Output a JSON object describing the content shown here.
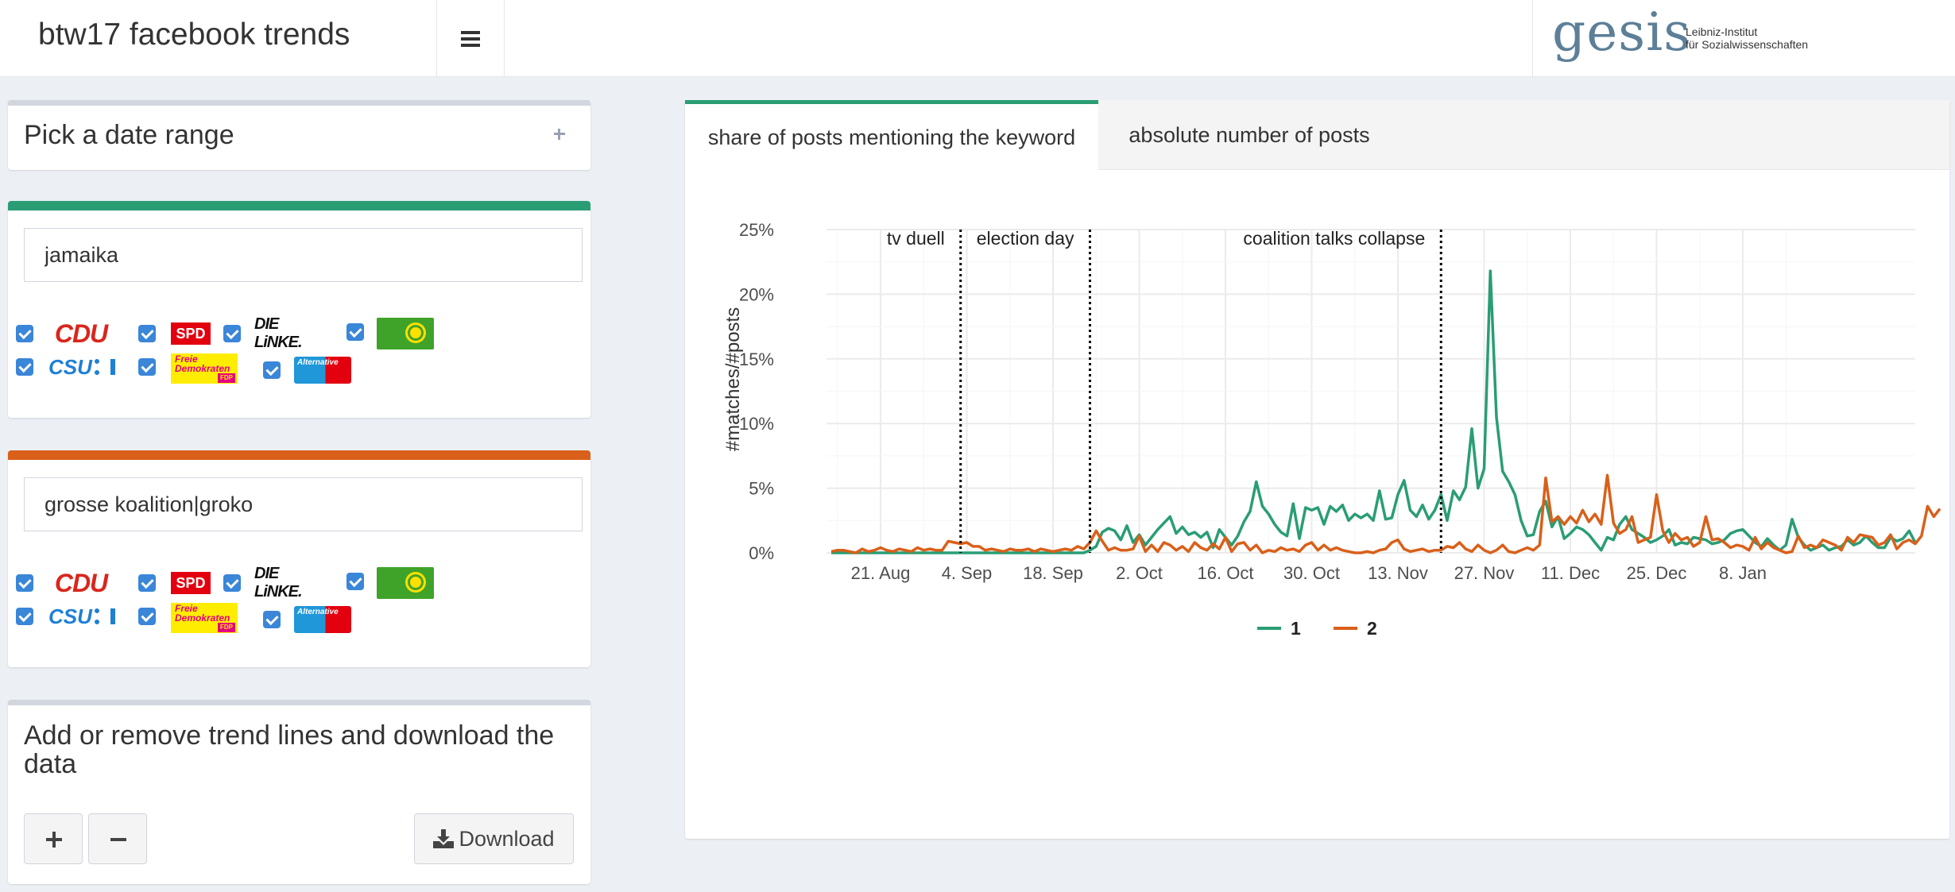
{
  "header": {
    "app_title": "btw17 facebook trends",
    "logo_word": "gesis",
    "logo_sub_line1": "Leibniz-Institut",
    "logo_sub_line2": "für Sozialwissenschaften",
    "menu_icon": "hamburger-icon"
  },
  "date_box": {
    "title": "Pick a date range",
    "icon": "plus-icon"
  },
  "keywords": [
    {
      "color": "#2a9d74",
      "value": "jamaika",
      "parties": [
        {
          "name": "CDU",
          "checked": true
        },
        {
          "name": "SPD",
          "checked": true
        },
        {
          "name": "DIE LINKE.",
          "checked": true
        },
        {
          "name": "GRÜNE",
          "checked": true
        },
        {
          "name": "CSU",
          "checked": true
        },
        {
          "name": "FDP",
          "checked": true
        },
        {
          "name": "AfD",
          "checked": true
        }
      ]
    },
    {
      "color": "#d9601a",
      "value": "grosse koalition|groko",
      "parties": [
        {
          "name": "CDU",
          "checked": true
        },
        {
          "name": "SPD",
          "checked": true
        },
        {
          "name": "DIE LINKE.",
          "checked": true
        },
        {
          "name": "GRÜNE",
          "checked": true
        },
        {
          "name": "CSU",
          "checked": true
        },
        {
          "name": "FDP",
          "checked": true
        },
        {
          "name": "AfD",
          "checked": true
        }
      ]
    }
  ],
  "party_logo_text": {
    "cdu": "CDU",
    "spd": "SPD",
    "linke": "DIE LiNKE.",
    "csu": "CSU",
    "fdp_line1": "Freie",
    "fdp_line2": "Demokraten",
    "fdp_tag": "FDP",
    "afd": "Alternative"
  },
  "trend_box": {
    "title": "Add or remove trend lines and download the data",
    "download_label": "Download",
    "add_icon": "plus-icon",
    "remove_icon": "minus-icon",
    "download_icon": "download-icon"
  },
  "tabs": [
    {
      "label": "share of posts mentioning the keyword",
      "active": true
    },
    {
      "label": "absolute number of posts",
      "active": false
    }
  ],
  "chart_data": {
    "type": "line",
    "ylabel": "#matches/#posts",
    "yticks": [
      "0%",
      "5%",
      "10%",
      "15%",
      "20%",
      "25%"
    ],
    "ylim": [
      0,
      25
    ],
    "x_start": "2017-08-13",
    "xticks": [
      {
        "date": "2017-08-21",
        "label": "21. Aug"
      },
      {
        "date": "2017-09-04",
        "label": "4. Sep"
      },
      {
        "date": "2017-09-18",
        "label": "18. Sep"
      },
      {
        "date": "2017-10-02",
        "label": "2. Oct"
      },
      {
        "date": "2017-10-16",
        "label": "16. Oct"
      },
      {
        "date": "2017-10-30",
        "label": "30. Oct"
      },
      {
        "date": "2017-11-13",
        "label": "13. Nov"
      },
      {
        "date": "2017-11-27",
        "label": "27. Nov"
      },
      {
        "date": "2017-12-11",
        "label": "11. Dec"
      },
      {
        "date": "2017-12-25",
        "label": "25. Dec"
      },
      {
        "date": "2018-01-08",
        "label": "8. Jan"
      }
    ],
    "events": [
      {
        "date": "2017-09-03",
        "label": "tv duell"
      },
      {
        "date": "2017-09-24",
        "label": "election day"
      },
      {
        "date": "2017-11-20",
        "label": "coalition talks collapse"
      }
    ],
    "grid": true,
    "legend_position": "bottom",
    "series": [
      {
        "name": "1",
        "color": "#2a9d74",
        "values": [
          0,
          0,
          0,
          0,
          0,
          0,
          0,
          0,
          0,
          0,
          0,
          0,
          0,
          0,
          0,
          0,
          0,
          0,
          0,
          0,
          0,
          0,
          0,
          0,
          0,
          0,
          0,
          0,
          0,
          0,
          0,
          0,
          0,
          0,
          0,
          0,
          0,
          0,
          0,
          0,
          0,
          0,
          0.2,
          0.5,
          1.6,
          1.9,
          1.7,
          1.0,
          2.1,
          0.8,
          1.4,
          0.6,
          1.2,
          1.8,
          2.3,
          2.8,
          1.5,
          2.0,
          1.4,
          1.6,
          1.2,
          1.6,
          0.4,
          1.8,
          1.2,
          0.6,
          1.3,
          2.4,
          3.2,
          5.5,
          3.6,
          3.0,
          2.2,
          1.6,
          1.3,
          3.8,
          1.1,
          3.5,
          3.3,
          3.5,
          2.2,
          3.6,
          3.2,
          3.7,
          2.5,
          3.0,
          2.7,
          3.0,
          2.5,
          4.8,
          2.6,
          2.7,
          4.5,
          5.6,
          3.3,
          2.8,
          3.7,
          2.6,
          3.3,
          4.5,
          2.5,
          4.8,
          4.1,
          5.1,
          9.6,
          5.0,
          6.5,
          21.8,
          10.5,
          6.3,
          5.5,
          4.5,
          2.5,
          1.3,
          1.4,
          3.2,
          4.0,
          2.0,
          2.8,
          1.1,
          1.5,
          2.0,
          1.8,
          1.4,
          0.8,
          0.2,
          1.2,
          1.0,
          2.2,
          2.8,
          1.8,
          1.5,
          1.2,
          0.8,
          1.0,
          1.3,
          1.8,
          0.6,
          0.8,
          0.7,
          1.2,
          1.1,
          1.0,
          0.7,
          0.8,
          1.0,
          1.5,
          1.7,
          1.8,
          1.3,
          0.8,
          0.5,
          1.1,
          0.6,
          0.2,
          0.6,
          2.6,
          1.2,
          0.6,
          0.2,
          0.4,
          0.6,
          0.2,
          0.4,
          0.5,
          1.0,
          0.6,
          0.8,
          1.3,
          0.8,
          0.4,
          0.4,
          1.2,
          0.9,
          1.1,
          1.7,
          0.8
        ]
      },
      {
        "name": "2",
        "color": "#d9601a",
        "values": [
          0.1,
          0.2,
          0.2,
          0.1,
          0.0,
          0.3,
          0.1,
          0.2,
          0.4,
          0.2,
          0.1,
          0.3,
          0.2,
          0.1,
          0.4,
          0.2,
          0.3,
          0.2,
          0.2,
          0.9,
          0.8,
          0.7,
          0.8,
          0.5,
          0.5,
          0.2,
          0.3,
          0.2,
          0.1,
          0.3,
          0.2,
          0.2,
          0.3,
          0.1,
          0.3,
          0.2,
          0.1,
          0.2,
          0.3,
          0.2,
          0.5,
          0.3,
          0.8,
          1.7,
          0.9,
          0.2,
          0.4,
          0.2,
          0.2,
          0.3,
          1.3,
          0.1,
          0.6,
          0.1,
          0.8,
          0.6,
          0.2,
          0.5,
          0.1,
          0.8,
          0.4,
          0.2,
          0.7,
          0.3,
          1.2,
          0.1,
          0.7,
          0.8,
          0.2,
          0.6,
          0.0,
          0.2,
          0.1,
          0.4,
          0.2,
          0.3,
          0.1,
          0.6,
          0.8,
          0.2,
          0.6,
          0.2,
          0.4,
          0.2,
          0.1,
          0.0,
          0.0,
          0.1,
          0.0,
          0.2,
          0.3,
          0.8,
          1.0,
          0.3,
          0.1,
          0.2,
          0.3,
          0.1,
          0.2,
          0.2,
          0.5,
          0.4,
          0.8,
          0.3,
          0.1,
          0.6,
          0.2,
          0.0,
          0.2,
          0.6,
          0.1,
          0.0,
          0.2,
          0.4,
          0.2,
          0.6,
          5.8,
          2.4,
          2.8,
          2.2,
          2.8,
          2.3,
          3.3,
          2.4,
          3.0,
          2.2,
          6.0,
          2.3,
          1.5,
          1.8,
          2.8,
          0.8,
          1.0,
          1.2,
          4.5,
          1.7,
          0.8,
          1.5,
          1.0,
          1.2,
          0.5,
          0.8,
          2.8,
          1.0,
          1.1,
          0.8,
          0.4,
          0.6,
          0.5,
          0.2,
          1.2,
          0.3,
          0.8,
          0.4,
          0.2,
          0.0,
          0.1,
          1.3,
          0.4,
          0.6,
          0.4,
          1.0,
          0.8,
          0.6,
          0.2,
          1.2,
          0.8,
          1.4,
          1.3,
          1.2,
          0.6,
          0.8,
          1.4,
          0.3,
          0.8,
          1.0,
          0.7,
          1.3,
          3.6,
          2.8,
          3.4
        ]
      }
    ]
  }
}
